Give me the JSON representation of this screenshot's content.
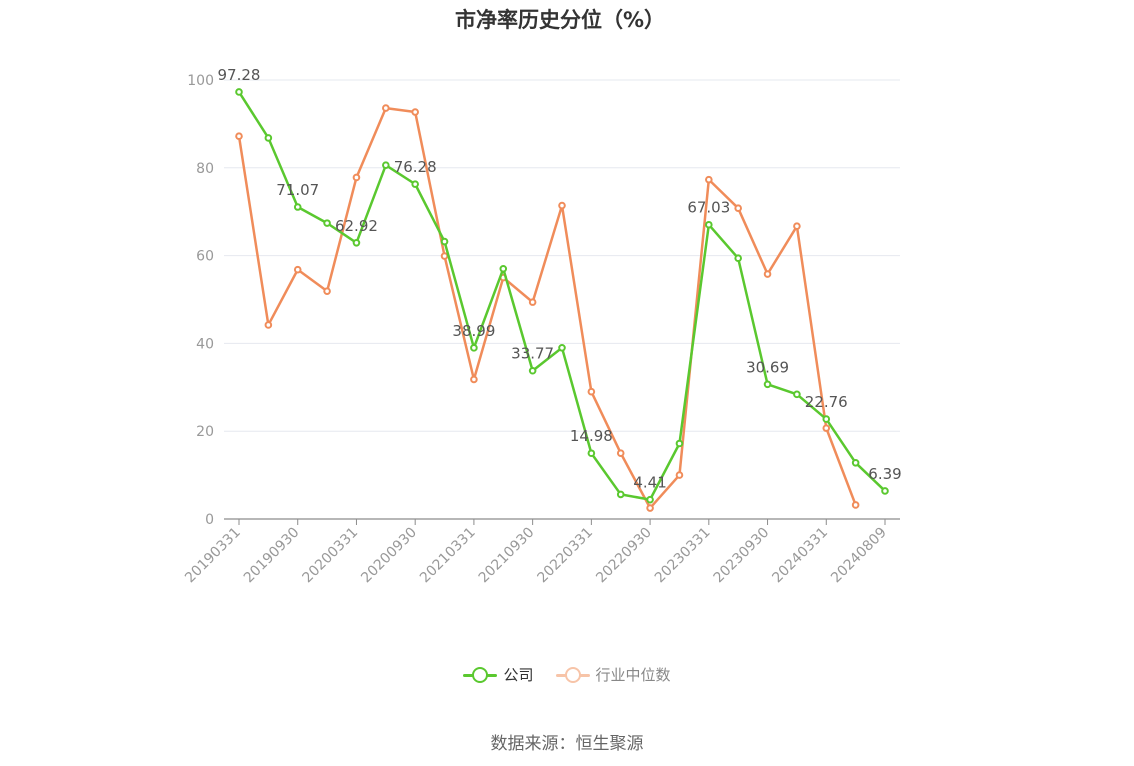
{
  "chart_data": {
    "type": "line",
    "title": "市净率历史分位（%）",
    "xlabel": "",
    "ylabel": "",
    "ylim": [
      0,
      100
    ],
    "yticks": [
      0,
      20,
      40,
      60,
      80,
      100
    ],
    "grid": true,
    "legend_position": "bottom",
    "x_tick_labels": [
      "20190331",
      "20190930",
      "20200331",
      "20200930",
      "20210331",
      "20210930",
      "20220331",
      "20220930",
      "20230331",
      "20230930",
      "20240331",
      "20240809"
    ],
    "series": [
      {
        "name": "公司",
        "color": "#5ac82f",
        "values": [
          97.28,
          86.8,
          71.07,
          67.4,
          62.92,
          80.6,
          76.28,
          63.2,
          38.99,
          57.0,
          33.77,
          39.0,
          14.98,
          5.6,
          4.41,
          17.2,
          67.03,
          59.4,
          30.69,
          28.4,
          22.76,
          12.8,
          6.39
        ],
        "labels": {
          "0": "97.28",
          "2": "71.07",
          "4": "62.92",
          "6": "76.28",
          "8": "38.99",
          "10": "33.77",
          "12": "14.98",
          "14": "4.41",
          "16": "67.03",
          "18": "30.69",
          "20": "22.76",
          "22": "6.39"
        }
      },
      {
        "name": "行业中位数",
        "color": "#f08c5a",
        "values": [
          87.2,
          44.2,
          56.8,
          51.9,
          77.8,
          93.6,
          92.7,
          59.9,
          31.8,
          55.0,
          49.4,
          71.4,
          29.0,
          15.0,
          2.5,
          10.0,
          77.3,
          70.8,
          55.8,
          66.7,
          20.7,
          3.2,
          null
        ]
      }
    ]
  },
  "legend": {
    "company_label": "公司",
    "industry_label": "行业中位数"
  },
  "source": "数据来源：恒生聚源"
}
